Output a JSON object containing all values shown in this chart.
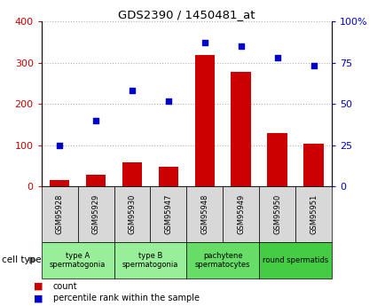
{
  "title": "GDS2390 / 1450481_at",
  "samples": [
    "GSM95928",
    "GSM95929",
    "GSM95930",
    "GSM95947",
    "GSM95948",
    "GSM95949",
    "GSM95950",
    "GSM95951"
  ],
  "counts": [
    15,
    28,
    58,
    48,
    318,
    278,
    130,
    105
  ],
  "percentiles": [
    25,
    40,
    58,
    52,
    87,
    85,
    78,
    73
  ],
  "bar_color": "#cc0000",
  "dot_color": "#0000cc",
  "ylim_left": [
    0,
    400
  ],
  "ylim_right": [
    0,
    100
  ],
  "yticks_left": [
    0,
    100,
    200,
    300,
    400
  ],
  "yticks_right": [
    0,
    25,
    50,
    75,
    100
  ],
  "ytick_labels_right": [
    "0",
    "25",
    "50",
    "75",
    "100%"
  ],
  "cell_groups": [
    {
      "label": "type A\nspermatogonia",
      "samples": [
        0,
        1
      ],
      "color": "#99ee99"
    },
    {
      "label": "type B\nspermatogonia",
      "samples": [
        2,
        3
      ],
      "color": "#99ee99"
    },
    {
      "label": "pachytene\nspermatocytes",
      "samples": [
        4,
        5
      ],
      "color": "#66dd66"
    },
    {
      "label": "round spermatids",
      "samples": [
        6,
        7
      ],
      "color": "#44cc44"
    }
  ],
  "legend_count_label": "count",
  "legend_pct_label": "percentile rank within the sample",
  "cell_type_label": "cell type",
  "bar_color_label": "#cc0000",
  "dot_color_label": "#0000cc",
  "left_tick_color": "#cc0000",
  "right_tick_color": "#0000cc",
  "sample_box_color": "#d8d8d8",
  "grid_color": "#aaaaaa"
}
